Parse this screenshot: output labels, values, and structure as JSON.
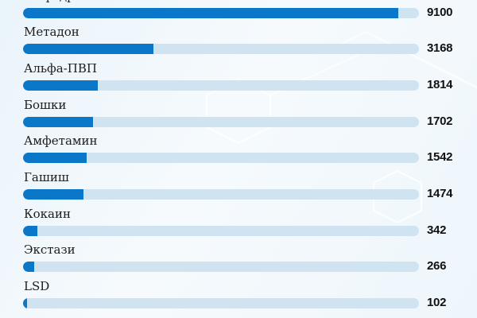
{
  "chart_data": {
    "type": "bar",
    "orientation": "horizontal",
    "categories": [
      "Мефедрон",
      "Метадон",
      "Альфа-ПВП",
      "Бошки",
      "Амфетамин",
      "Гашиш",
      "Кокаин",
      "Экстази",
      "LSD"
    ],
    "values": [
      9100,
      3168,
      1814,
      1702,
      1542,
      1474,
      342,
      266,
      102
    ],
    "xlim": [
      0,
      9600
    ],
    "grid": false,
    "colors": {
      "fill": "#0a77c9",
      "track": "#cfe3f1"
    }
  }
}
